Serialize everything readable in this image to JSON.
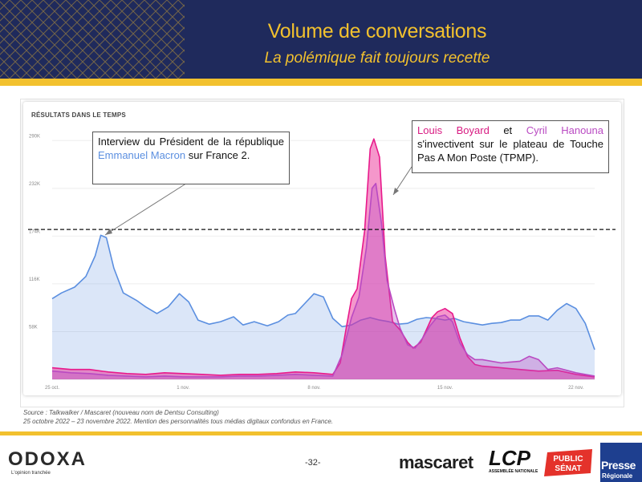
{
  "header": {
    "title": "Volume de conversations",
    "subtitle": "La polémique fait toujours recette"
  },
  "panel": {
    "title": "RÉSULTATS DANS LE TEMPS"
  },
  "annotations": {
    "left": {
      "before": "Interview du Président de la république ",
      "name": "Emmanuel Macron",
      "after": " sur France 2."
    },
    "right": {
      "name1": "Louis Boyard",
      "mid": " et ",
      "name2": "Cyril Hanouna",
      "after": " s'invectivent sur le plateau de Touche Pas A Mon Poste (TPMP)."
    }
  },
  "source": {
    "line1": "Source : Talkwalker / Mascaret (nouveau nom de Dentsu Consulting)",
    "line2": "25 octobre 2022 – 23 novembre 2022. Mention des personnalités tous médias digitaux confondus en France."
  },
  "footer": {
    "odoxa": "ODOXA",
    "odoxa_tagline": "L'opinion tranchée",
    "page_number": "-32-",
    "mascaret": "mascaret",
    "lcp": "LCP",
    "lcp_tagline": "ASSEMBLÉE NATIONALE",
    "public_senat_line1": "PUBLIC",
    "public_senat_line2": "SÉNAT",
    "presse": "Presse",
    "presse_sub": "Régionale"
  },
  "colors": {
    "header_bg": "#1f2a5c",
    "gold": "#f2c12e",
    "macron": "#5b8fe0",
    "boyard": "#e8198b",
    "hanouna": "#b94ac2"
  },
  "chart_data": {
    "type": "area",
    "title": "RÉSULTATS DANS LE TEMPS",
    "x_tick_labels": [
      "25 oct.",
      "1 nov.",
      "8 nov.",
      "15 nov.",
      "22 nov."
    ],
    "x_tick_days": [
      0,
      7,
      14,
      21,
      28
    ],
    "y_tick_labels": [
      "58K",
      "116K",
      "174K",
      "232K",
      "290K"
    ],
    "y_tick_values": [
      58000,
      116000,
      174000,
      232000,
      290000
    ],
    "ylim": [
      0,
      300000
    ],
    "xlim": [
      0,
      29
    ],
    "grid": true,
    "reference_line": 182000,
    "series": [
      {
        "name": "Emmanuel Macron",
        "color": "#5b8fe0",
        "points": [
          [
            0,
            98000
          ],
          [
            0.5,
            105000
          ],
          [
            1.2,
            112000
          ],
          [
            1.8,
            125000
          ],
          [
            2.3,
            150000
          ],
          [
            2.6,
            175000
          ],
          [
            2.9,
            172000
          ],
          [
            3.3,
            135000
          ],
          [
            3.8,
            105000
          ],
          [
            4.5,
            96000
          ],
          [
            5,
            88000
          ],
          [
            5.6,
            80000
          ],
          [
            6.2,
            88000
          ],
          [
            6.8,
            104000
          ],
          [
            7.3,
            94000
          ],
          [
            7.8,
            72000
          ],
          [
            8.4,
            67000
          ],
          [
            9,
            70000
          ],
          [
            9.7,
            76000
          ],
          [
            10.2,
            66000
          ],
          [
            10.8,
            70000
          ],
          [
            11.5,
            65000
          ],
          [
            12.1,
            70000
          ],
          [
            12.6,
            78000
          ],
          [
            13,
            80000
          ],
          [
            13.5,
            92000
          ],
          [
            14,
            104000
          ],
          [
            14.5,
            100000
          ],
          [
            15,
            74000
          ],
          [
            15.5,
            64000
          ],
          [
            16,
            66000
          ],
          [
            16.5,
            72000
          ],
          [
            17,
            75000
          ],
          [
            17.5,
            72000
          ],
          [
            18,
            70000
          ],
          [
            18.5,
            67000
          ],
          [
            19,
            68000
          ],
          [
            19.5,
            73000
          ],
          [
            20,
            75000
          ],
          [
            20.5,
            74000
          ],
          [
            21,
            72000
          ],
          [
            21.5,
            74000
          ],
          [
            22,
            70000
          ],
          [
            22.5,
            68000
          ],
          [
            23,
            66000
          ],
          [
            23.5,
            68000
          ],
          [
            24,
            69000
          ],
          [
            24.5,
            72000
          ],
          [
            25,
            72000
          ],
          [
            25.5,
            77000
          ],
          [
            26,
            77000
          ],
          [
            26.5,
            72000
          ],
          [
            27,
            84000
          ],
          [
            27.5,
            92000
          ],
          [
            28,
            86000
          ],
          [
            28.5,
            68000
          ],
          [
            29,
            36000
          ]
        ]
      },
      {
        "name": "Louis Boyard",
        "color": "#e8198b",
        "points": [
          [
            0,
            14000
          ],
          [
            1,
            12000
          ],
          [
            2,
            12000
          ],
          [
            3,
            9000
          ],
          [
            4,
            7000
          ],
          [
            5,
            6000
          ],
          [
            6,
            8000
          ],
          [
            7,
            7000
          ],
          [
            8,
            6000
          ],
          [
            9,
            5000
          ],
          [
            10,
            6000
          ],
          [
            11,
            6000
          ],
          [
            12,
            7000
          ],
          [
            13,
            9000
          ],
          [
            14,
            8000
          ],
          [
            15,
            6000
          ],
          [
            15.4,
            20000
          ],
          [
            15.7,
            60000
          ],
          [
            16,
            98000
          ],
          [
            16.3,
            110000
          ],
          [
            16.7,
            180000
          ],
          [
            17,
            280000
          ],
          [
            17.2,
            292000
          ],
          [
            17.5,
            270000
          ],
          [
            17.8,
            150000
          ],
          [
            18.2,
            70000
          ],
          [
            18.6,
            60000
          ],
          [
            19,
            45000
          ],
          [
            19.3,
            38000
          ],
          [
            19.7,
            45000
          ],
          [
            20,
            60000
          ],
          [
            20.3,
            75000
          ],
          [
            20.6,
            82000
          ],
          [
            21,
            86000
          ],
          [
            21.4,
            80000
          ],
          [
            21.8,
            50000
          ],
          [
            22.2,
            28000
          ],
          [
            22.6,
            18000
          ],
          [
            23,
            16000
          ],
          [
            24,
            14000
          ],
          [
            25,
            12000
          ],
          [
            26,
            10000
          ],
          [
            27,
            11000
          ],
          [
            28,
            6000
          ],
          [
            29,
            3000
          ]
        ]
      },
      {
        "name": "Cyril Hanouna",
        "color": "#b94ac2",
        "points": [
          [
            0,
            10000
          ],
          [
            1,
            8000
          ],
          [
            2,
            7000
          ],
          [
            3,
            5000
          ],
          [
            4,
            4000
          ],
          [
            5,
            3000
          ],
          [
            6,
            4000
          ],
          [
            7,
            3000
          ],
          [
            8,
            3000
          ],
          [
            9,
            3000
          ],
          [
            10,
            4000
          ],
          [
            11,
            4000
          ],
          [
            12,
            5000
          ],
          [
            13,
            6000
          ],
          [
            14,
            5000
          ],
          [
            15,
            4000
          ],
          [
            15.5,
            30000
          ],
          [
            16,
            75000
          ],
          [
            16.4,
            100000
          ],
          [
            16.8,
            160000
          ],
          [
            17.1,
            232000
          ],
          [
            17.3,
            238000
          ],
          [
            17.6,
            190000
          ],
          [
            17.9,
            120000
          ],
          [
            18.3,
            85000
          ],
          [
            18.6,
            62000
          ],
          [
            19,
            42000
          ],
          [
            19.4,
            38000
          ],
          [
            19.8,
            50000
          ],
          [
            20.2,
            65000
          ],
          [
            20.6,
            76000
          ],
          [
            21,
            78000
          ],
          [
            21.4,
            70000
          ],
          [
            21.8,
            44000
          ],
          [
            22.2,
            30000
          ],
          [
            22.6,
            24000
          ],
          [
            23,
            24000
          ],
          [
            24,
            20000
          ],
          [
            25,
            22000
          ],
          [
            25.5,
            28000
          ],
          [
            26,
            24000
          ],
          [
            26.5,
            12000
          ],
          [
            27,
            14000
          ],
          [
            28,
            8000
          ],
          [
            29,
            4000
          ]
        ]
      }
    ]
  }
}
